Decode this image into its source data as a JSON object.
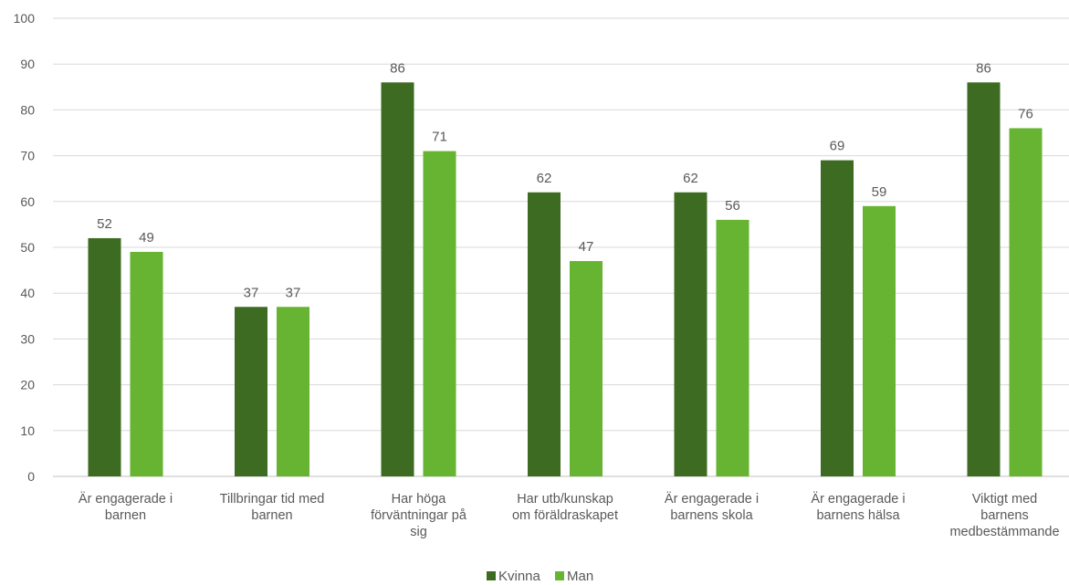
{
  "chart_data": {
    "type": "bar",
    "categories": [
      [
        "Är engagerade i",
        "barnen"
      ],
      [
        "Tillbringar tid med",
        "barnen"
      ],
      [
        "Har höga",
        "förväntningar på",
        "sig"
      ],
      [
        "Har utb/kunskap",
        "om föräldraskapet"
      ],
      [
        "Är engagerade i",
        "barnens skola"
      ],
      [
        "Är engagerade i",
        "barnens hälsa"
      ],
      [
        "Viktigt med",
        "barnens",
        "medbestämmande"
      ]
    ],
    "series": [
      {
        "name": "Kvinna",
        "color": "#3e6b22",
        "values": [
          52,
          37,
          86,
          62,
          62,
          69,
          86
        ]
      },
      {
        "name": "Man",
        "color": "#67b332",
        "values": [
          49,
          37,
          71,
          47,
          56,
          59,
          76
        ]
      }
    ],
    "ylim": [
      0,
      100
    ],
    "yticks": [
      0,
      10,
      20,
      30,
      40,
      50,
      60,
      70,
      80,
      90,
      100
    ],
    "grid": true,
    "legend_position": "bottom-center",
    "data_labels": true
  }
}
